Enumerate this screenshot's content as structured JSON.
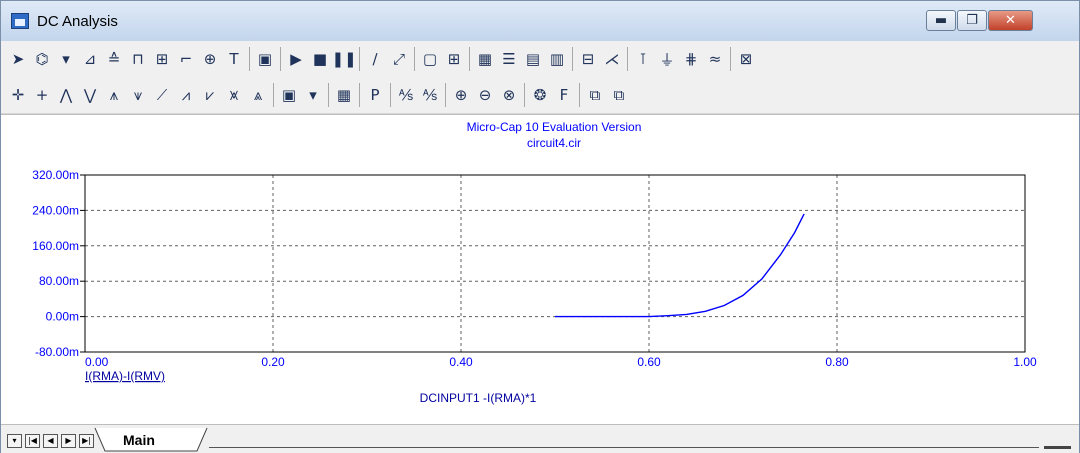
{
  "window": {
    "title": "DC Analysis",
    "buttons": {
      "minimize": "▬",
      "maximize": "❐",
      "close": "✕"
    }
  },
  "toolbar1": {
    "icons": [
      "select-arrow-icon",
      "shape-tool-icon",
      "dropdown-arrow-icon",
      "component-icon",
      "node-icon",
      "wire-icon",
      "grid-wire-icon",
      "bus-icon",
      "junction-icon",
      "text-tool-icon",
      "properties-icon",
      "run-icon",
      "stop-icon",
      "pause-icon",
      "line-icon",
      "diagonal-line-icon",
      "box-icon",
      "grid-icon",
      "bar-pattern-icon",
      "lines-pattern-icon",
      "frame-icon",
      "split-icon",
      "panel-icon",
      "cursor-icon",
      "probe-icon",
      "junction-dot-icon",
      "branch-icon",
      "wave-icon",
      "zoom-box-icon"
    ],
    "glyphs": [
      "➤",
      "⌬",
      "▾",
      "⊿",
      "≙",
      "⊓",
      "⊞",
      "⌐",
      "⊕",
      "T",
      "▣",
      "▶",
      "■",
      "❚❚",
      "∕",
      "⤢",
      "▢",
      "⊞",
      "▦",
      "☰",
      "▤",
      "▥",
      "⊟",
      "⋌",
      "⊺",
      "⏚",
      "⋕",
      "≈",
      "⊠"
    ]
  },
  "toolbar2": {
    "icons": [
      "cursor-cross-icon",
      "cursor-plus-icon",
      "peak-icon",
      "valley-icon",
      "high-icon",
      "low-icon",
      "slope-icon",
      "inflection-icon",
      "global-high-icon",
      "global-low-icon",
      "top-icon",
      "palette-icon",
      "dropdown-arrow-icon",
      "table-icon",
      "point-label-icon",
      "scale-x-icon",
      "scale-y-icon",
      "zoom-in-icon",
      "zoom-out-icon",
      "zoom-fit-icon",
      "color-wheel-icon",
      "font-icon",
      "copy-icon",
      "paste-icon"
    ],
    "glyphs": [
      "✛",
      "+",
      "⋀",
      "⋁",
      "⩚",
      "⩛",
      "⟋",
      "⩘",
      "⩗",
      "⩙",
      "⩓",
      "▣",
      "▾",
      "▦",
      "P",
      "⅍",
      "⅍",
      "⊕",
      "⊖",
      "⊗",
      "❂",
      "F",
      "⧉",
      "⧉"
    ]
  },
  "plot": {
    "header_line1": "Micro-Cap 10 Evaluation Version",
    "header_line2": "circuit4.cir",
    "series_color": "#0000ff",
    "text_color": "#0000ff",
    "label_color": "#0000a0"
  },
  "chart_data": {
    "type": "line",
    "title": "Micro-Cap 10 Evaluation Version",
    "subtitle": "circuit4.cir",
    "xlabel": "DCINPUT1 -I(RMA)*1",
    "ylabel": "I(RMA)-I(RMV)",
    "xlim": [
      0.0,
      1.0
    ],
    "ylim": [
      -0.08,
      0.32
    ],
    "x_tick_labels": [
      "0.00",
      "0.20",
      "0.40",
      "0.60",
      "0.80",
      "1.00"
    ],
    "x_ticks": [
      0.0,
      0.2,
      0.4,
      0.6,
      0.8,
      1.0
    ],
    "y_tick_labels": [
      "-80.00m",
      "0.00m",
      "80.00m",
      "160.00m",
      "240.00m",
      "320.00m"
    ],
    "y_ticks": [
      -0.08,
      0.0,
      0.08,
      0.16,
      0.24,
      0.32
    ],
    "grid": true,
    "series": [
      {
        "name": "I(RMA)-I(RMV)",
        "x": [
          0.5,
          0.55,
          0.6,
          0.62,
          0.64,
          0.66,
          0.68,
          0.7,
          0.72,
          0.74,
          0.755,
          0.765
        ],
        "y": [
          0.0,
          0.0,
          0.0,
          0.002,
          0.005,
          0.012,
          0.025,
          0.048,
          0.085,
          0.14,
          0.19,
          0.232
        ]
      }
    ]
  },
  "tabs": {
    "nav": [
      "▾",
      "|◀",
      "◀",
      "▶",
      "▶|"
    ],
    "active": "Main"
  }
}
